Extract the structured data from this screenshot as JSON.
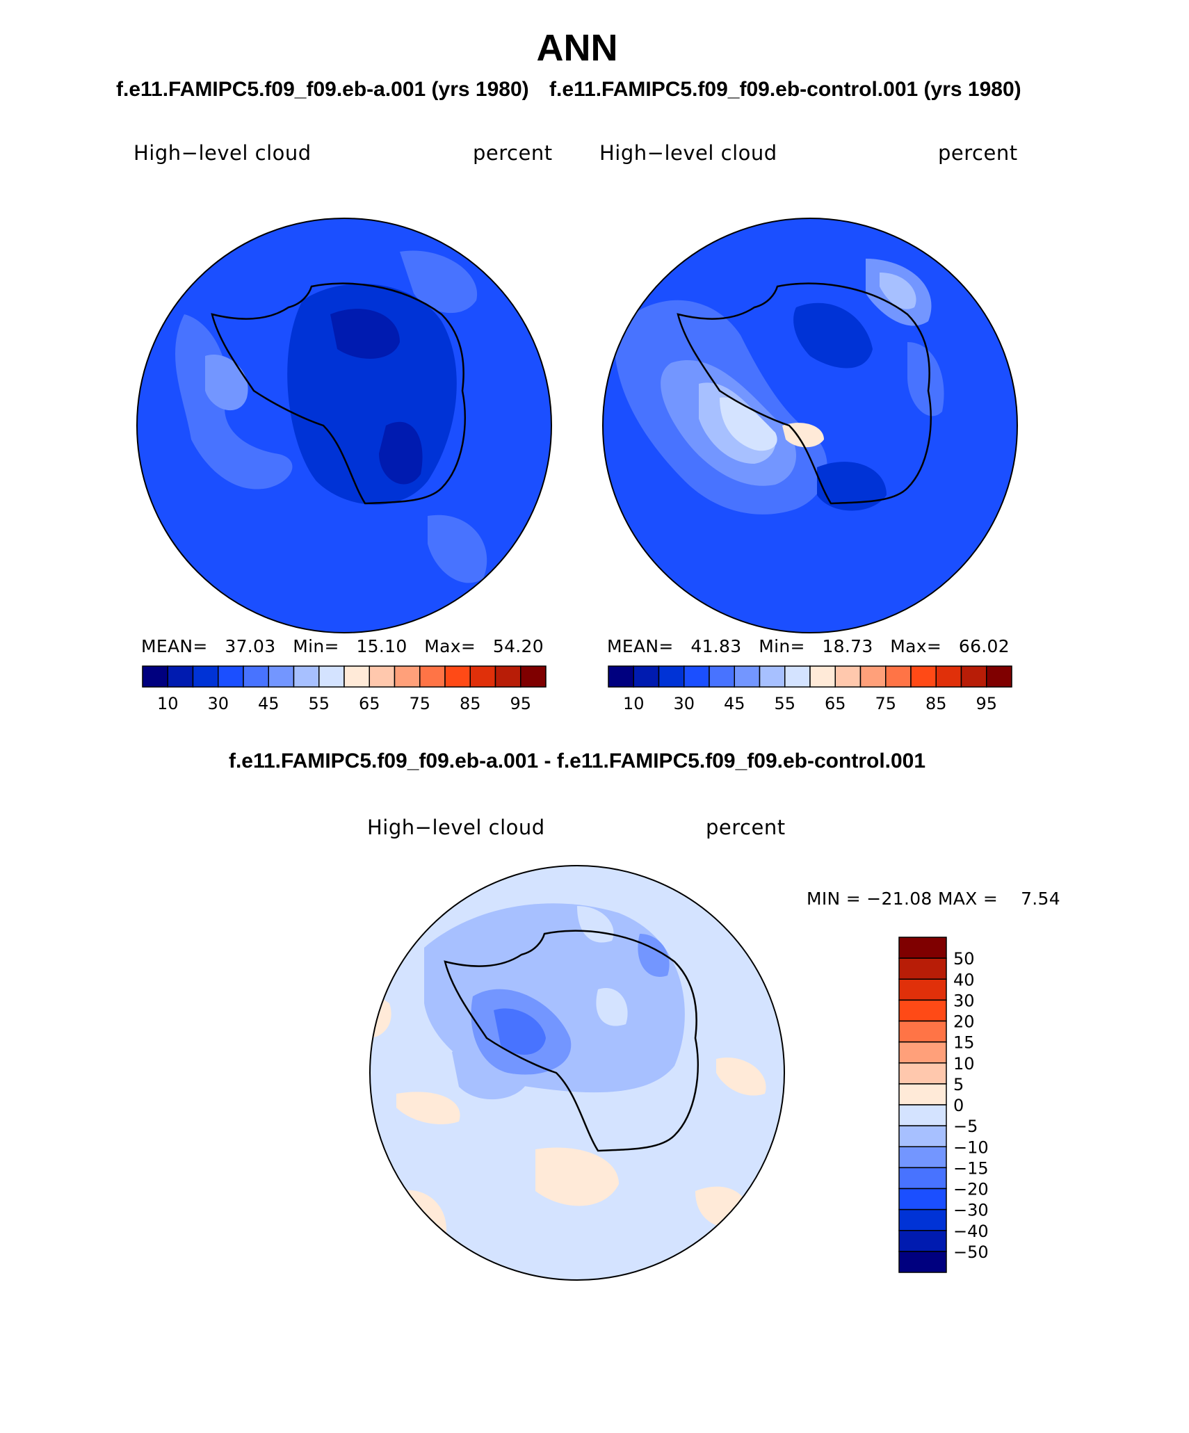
{
  "header": {
    "title": "ANN",
    "left_case_title": "f.e11.FAMIPC5.f09_f09.eb-a.001 (yrs 1980)",
    "right_case_title": "f.e11.FAMIPC5.f09_f09.eb-control.001 (yrs 1980)",
    "diff_title": "f.e11.FAMIPC5.f09_f09.eb-a.001 - f.e11.FAMIPC5.f09_f09.eb-control.001"
  },
  "panels": {
    "left": {
      "variable": "High−level cloud",
      "units": "percent",
      "stats": {
        "mean_label": "MEAN=",
        "mean": "37.03",
        "min_label": "Min=",
        "min": "15.10",
        "max_label": "Max=",
        "max": "54.20"
      }
    },
    "right": {
      "variable": "High−level cloud",
      "units": "percent",
      "stats": {
        "mean_label": "MEAN=",
        "mean": "41.83",
        "min_label": "Min=",
        "min": "18.73",
        "max_label": "Max=",
        "max": "66.02"
      }
    },
    "diff": {
      "variable": "High−level cloud",
      "units": "percent",
      "stats": {
        "min_label": "MIN =",
        "min": "−21.08",
        "max_label": "MAX =",
        "max": "7.54"
      }
    }
  },
  "colorbars": {
    "abs_colors": [
      "#00007f",
      "#001bb0",
      "#0033d6",
      "#1b4fff",
      "#4873ff",
      "#7396ff",
      "#a7c0ff",
      "#d4e3ff",
      "#ffead8",
      "#ffc8ad",
      "#ffa07a",
      "#ff7446",
      "#ff4a16",
      "#e0300a",
      "#b81d07",
      "#7f0000"
    ],
    "abs_tick_labels": [
      "10",
      "30",
      "45",
      "55",
      "65",
      "75",
      "85",
      "95"
    ],
    "diff_colors": [
      "#00007f",
      "#001bb0",
      "#0033d6",
      "#1b4fff",
      "#4873ff",
      "#7396ff",
      "#a7c0ff",
      "#d4e3ff",
      "#ffead8",
      "#ffc8ad",
      "#ffa07a",
      "#ff7446",
      "#ff4a16",
      "#e0300a",
      "#b81d07",
      "#7f0000"
    ],
    "diff_tick_labels": [
      "50",
      "40",
      "30",
      "20",
      "15",
      "10",
      "5",
      "0",
      "−5",
      "−10",
      "−15",
      "−20",
      "−30",
      "−40",
      "−50"
    ]
  },
  "chart_data": [
    {
      "type": "heatmap",
      "projection": "south polar stereographic",
      "title": "f.e11.FAMIPC5.f09_f09.eb-a.001 (yrs 1980)",
      "variable": "High−level cloud",
      "units": "percent",
      "contour_levels": [
        5,
        10,
        20,
        30,
        40,
        45,
        50,
        55,
        60,
        65,
        70,
        75,
        80,
        85,
        90,
        95
      ],
      "mean": 37.03,
      "min": 15.1,
      "max": 54.2
    },
    {
      "type": "heatmap",
      "projection": "south polar stereographic",
      "title": "f.e11.FAMIPC5.f09_f09.eb-control.001 (yrs 1980)",
      "variable": "High−level cloud",
      "units": "percent",
      "contour_levels": [
        5,
        10,
        20,
        30,
        40,
        45,
        50,
        55,
        60,
        65,
        70,
        75,
        80,
        85,
        90,
        95
      ],
      "mean": 41.83,
      "min": 18.73,
      "max": 66.02
    },
    {
      "type": "heatmap",
      "projection": "south polar stereographic",
      "title": "f.e11.FAMIPC5.f09_f09.eb-a.001 - f.e11.FAMIPC5.f09_f09.eb-control.001",
      "variable": "High−level cloud",
      "units": "percent",
      "contour_levels": [
        -50,
        -40,
        -30,
        -20,
        -15,
        -10,
        -5,
        0,
        5,
        10,
        15,
        20,
        30,
        40,
        50
      ],
      "min": -21.08,
      "max": 7.54
    }
  ]
}
